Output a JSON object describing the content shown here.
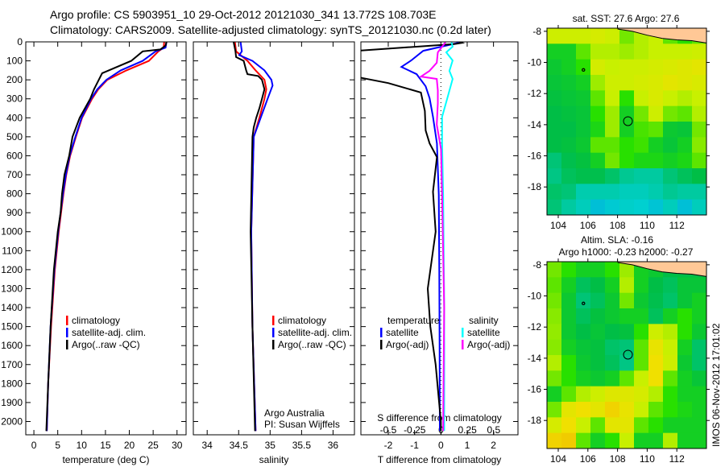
{
  "title": {
    "line1": "Argo profile: CS 5903951_10 29-Oct-2012 20121030_341 13.772S 108.703E",
    "line2": "Climatology: CARS2009. Satellite-adjusted climatology: synTS_20121030.nc (0.2d later)"
  },
  "stamp": "IMOS 06-Nov-2012 17:01:02",
  "colors": {
    "clim": "#ff0000",
    "sat": "#0000ff",
    "argo": "#000000",
    "sat_s": "#00ffff",
    "argo_s": "#ff00ff",
    "land": "#ffc896"
  },
  "chart_data": [
    {
      "type": "line",
      "id": "temperature",
      "xlabel": "temperature (deg C)",
      "ylabel": "depth",
      "xlim": [
        -1.7,
        31.9
      ],
      "ylim": [
        0,
        2070
      ],
      "xticks": [
        0,
        5,
        10,
        15,
        20,
        25,
        30
      ],
      "yticks": [
        0,
        100,
        200,
        300,
        400,
        500,
        600,
        700,
        800,
        900,
        1000,
        1100,
        1200,
        1300,
        1400,
        1500,
        1600,
        1700,
        1800,
        1900,
        2000
      ],
      "legend": [
        "climatology",
        "satellite-adj. clim.",
        "Argo(..raw -QC)"
      ],
      "series": [
        {
          "name": "climatology",
          "color": "#ff0000",
          "depth": [
            0,
            30,
            50,
            100,
            150,
            200,
            250,
            300,
            400,
            500,
            600,
            700,
            800,
            900,
            1000,
            1200,
            1500,
            1800,
            2050
          ],
          "values": [
            27.3,
            27.2,
            26.1,
            24.1,
            19.4,
            15.4,
            13.5,
            12.2,
            10.1,
            8.8,
            7.6,
            6.8,
            6.2,
            5.7,
            5.2,
            4.4,
            3.6,
            3.0,
            2.7
          ]
        },
        {
          "name": "satellite-adj. clim.",
          "color": "#0000ff",
          "depth": [
            0,
            30,
            50,
            100,
            150,
            200,
            250,
            300,
            400,
            500,
            600,
            700,
            800,
            900,
            1000,
            1200,
            1500,
            1800,
            2050
          ],
          "values": [
            27.8,
            27.6,
            25.5,
            22.8,
            18.2,
            15.2,
            13.3,
            12.0,
            10.0,
            8.7,
            7.5,
            6.7,
            6.1,
            5.6,
            5.1,
            4.3,
            3.5,
            3.0,
            2.7
          ]
        },
        {
          "name": "Argo(..raw -QC)",
          "color": "#000000",
          "depth": [
            0,
            20,
            40,
            50,
            100,
            165,
            250,
            300,
            400,
            500,
            600,
            700,
            800,
            900,
            1000,
            1200,
            1500,
            1800,
            2050
          ],
          "values": [
            27.8,
            27.6,
            26.5,
            22.8,
            20.4,
            14.3,
            12.6,
            11.8,
            9.6,
            8.1,
            7.4,
            6.4,
            5.9,
            5.6,
            5.0,
            4.2,
            3.5,
            3.0,
            2.6
          ]
        }
      ]
    },
    {
      "type": "line",
      "id": "salinity",
      "xlabel": "salinity",
      "xlim": [
        33.78,
        36.34
      ],
      "ylim": [
        0,
        2070
      ],
      "xticks": [
        "34",
        "34.5",
        "35",
        "35.5",
        "36"
      ],
      "legend": [
        "climatology",
        "satellite-adj. clim.",
        "Argo(..raw -QC)"
      ],
      "annotation": [
        "Argo Australia",
        "PI: Susan Wijffels"
      ],
      "series": [
        {
          "name": "climatology",
          "color": "#ff0000",
          "depth": [
            0,
            50,
            100,
            150,
            200,
            250,
            300,
            400,
            500,
            1000,
            1500,
            2050
          ],
          "values": [
            34.44,
            34.46,
            34.64,
            34.77,
            34.91,
            34.94,
            34.91,
            34.83,
            34.74,
            34.7,
            34.72,
            34.77
          ]
        },
        {
          "name": "satellite-adj. clim.",
          "color": "#0000ff",
          "depth": [
            0,
            50,
            70,
            100,
            150,
            200,
            230,
            300,
            400,
            500,
            1000,
            1500,
            2050
          ],
          "values": [
            34.53,
            34.55,
            34.51,
            34.72,
            34.91,
            35.02,
            35.04,
            34.96,
            34.85,
            34.74,
            34.7,
            34.72,
            34.77
          ]
        },
        {
          "name": "Argo(..raw -QC)",
          "color": "#000000",
          "depth": [
            0,
            50,
            80,
            100,
            150,
            170,
            180,
            200,
            250,
            300,
            350,
            400,
            450,
            500,
            1000,
            1500,
            2050
          ],
          "values": [
            34.42,
            34.45,
            34.46,
            34.58,
            34.62,
            34.64,
            34.81,
            34.87,
            34.91,
            34.87,
            34.83,
            34.78,
            34.74,
            34.72,
            34.69,
            34.72,
            34.76
          ]
        }
      ]
    },
    {
      "type": "line",
      "id": "difference",
      "xlabel": "T difference from climatology",
      "x2label": "S difference from climatology",
      "xlim": [
        -3.04,
        2.93
      ],
      "x2lim": [
        -0.76,
        0.73
      ],
      "ylim": [
        0,
        2070
      ],
      "xticks": [
        "-2",
        "-1",
        "0",
        "1",
        "2"
      ],
      "x2ticks": [
        "-0.5",
        "-0.25",
        "0",
        "0.25",
        "0.5"
      ],
      "legend_t": {
        "title": "temperature",
        "items": [
          "satellite",
          "Argo(-adj)"
        ]
      },
      "legend_s": {
        "title": "salinity",
        "items": [
          "satellite",
          "Argo(-adj)"
        ]
      },
      "series": [
        {
          "name": "T satellite",
          "axis": "T",
          "color": "#0000ff",
          "depth": [
            0,
            4,
            47,
            98,
            132,
            170,
            234,
            297,
            395,
            535,
            805,
            1200,
            1600,
            2050
          ],
          "values": [
            0.7,
            0.7,
            -0.67,
            -1.13,
            -1.5,
            -0.92,
            -0.58,
            -0.43,
            -0.3,
            -0.15,
            -0.08,
            -0.06,
            -0.05,
            -0.04
          ]
        },
        {
          "name": "T Argo(-adj)",
          "axis": "T",
          "color": "#000000",
          "depth": [
            0,
            5,
            12,
            47,
            185,
            190,
            217,
            267,
            364,
            467,
            535,
            607,
            790,
            1000,
            1300,
            1500,
            1700,
            2000,
            2050
          ],
          "values": [
            0.7,
            0.8,
            0.5,
            -3.2,
            -3.2,
            -3.0,
            -2.0,
            -0.76,
            -0.61,
            -0.58,
            -0.43,
            -0.15,
            -0.3,
            -0.2,
            -0.5,
            -0.4,
            -0.2,
            0,
            0
          ]
        },
        {
          "name": "S satellite",
          "axis": "S",
          "color": "#00ffff",
          "depth": [
            0,
            4,
            25,
            55,
            98,
            153,
            195,
            297,
            395,
            535,
            805,
            1400,
            2050
          ],
          "values": [
            0.1,
            0.1,
            0.11,
            0.05,
            0.11,
            0.08,
            0.11,
            0.06,
            0.01,
            0.01,
            0.02,
            0.03,
            0.03
          ]
        },
        {
          "name": "S Argo(-adj)",
          "axis": "S",
          "color": "#ff00ff",
          "depth": [
            0,
            4,
            55,
            110,
            153,
            183,
            195,
            255,
            323,
            436,
            565,
            805,
            1400,
            2050
          ],
          "values": [
            0.04,
            0.04,
            -0.03,
            -0.04,
            -0.11,
            -0.19,
            -0.04,
            -0.03,
            -0.03,
            -0.04,
            0,
            0.01,
            0.03,
            0.02
          ]
        }
      ]
    },
    {
      "type": "heatmap",
      "id": "sst-map",
      "title": "sat. SST: 27.6 Argo: 27.6",
      "xlim": [
        103.24,
        114.0
      ],
      "ylim": [
        -19.8,
        -7.8
      ],
      "xticks": [
        "104",
        "106",
        "108",
        "110",
        "112"
      ],
      "yticks": [
        "-8",
        "-10",
        "-12",
        "-14",
        "-16",
        "-18"
      ],
      "argo_position": [
        108.703,
        -13.772
      ],
      "grid": [
        [
          0.72,
          0.72,
          0.72,
          0.75,
          0.72,
          0.62,
          0.68,
          0.7,
          0.6,
          0.55,
          0.6
        ],
        [
          0.5,
          0.5,
          0.6,
          0.68,
          0.68,
          0.66,
          0.68,
          0.7,
          0.7,
          0.7,
          0.72
        ],
        [
          0.48,
          0.5,
          0.55,
          0.74,
          0.7,
          0.72,
          0.72,
          0.74,
          0.76,
          0.78,
          0.8
        ],
        [
          0.47,
          0.48,
          0.5,
          0.66,
          0.72,
          0.72,
          0.74,
          0.76,
          0.8,
          0.78,
          0.76
        ],
        [
          0.46,
          0.47,
          0.48,
          0.6,
          0.7,
          0.55,
          0.7,
          0.76,
          0.7,
          0.68,
          0.7
        ],
        [
          0.45,
          0.46,
          0.47,
          0.55,
          0.66,
          0.5,
          0.62,
          0.72,
          0.62,
          0.6,
          0.68
        ],
        [
          0.45,
          0.45,
          0.47,
          0.52,
          0.66,
          0.5,
          0.58,
          0.6,
          0.48,
          0.47,
          0.62
        ],
        [
          0.45,
          0.46,
          0.48,
          0.6,
          0.6,
          0.55,
          0.57,
          0.5,
          0.47,
          0.5,
          0.64
        ],
        [
          0.38,
          0.44,
          0.46,
          0.5,
          0.62,
          0.55,
          0.52,
          0.52,
          0.5,
          0.52,
          0.6
        ],
        [
          0.36,
          0.42,
          0.44,
          0.44,
          0.4,
          0.34,
          0.32,
          0.32,
          0.38,
          0.42,
          0.45
        ],
        [
          0.4,
          0.38,
          0.3,
          0.3,
          0.3,
          0.28,
          0.28,
          0.3,
          0.34,
          0.32,
          0.32
        ],
        [
          0.38,
          0.32,
          0.28,
          0.22,
          0.24,
          0.26,
          0.25,
          0.23,
          0.28,
          0.22,
          0.28
        ]
      ]
    },
    {
      "type": "heatmap",
      "id": "sla-map",
      "title": "Altim. SLA: -0.16",
      "subtitle": "Argo h1000: -0.23 h2000: -0.27",
      "xlim": [
        103.24,
        114.0
      ],
      "ylim": [
        -19.8,
        -7.8
      ],
      "xticks": [
        "104",
        "106",
        "108",
        "110",
        "112"
      ],
      "yticks": [
        "-8",
        "-10",
        "-12",
        "-14",
        "-16",
        "-18"
      ],
      "argo_position": [
        108.703,
        -13.772
      ],
      "grid": [
        [
          0.62,
          0.55,
          0.5,
          0.5,
          0.55,
          0.66,
          0.5,
          0.48,
          0.45,
          0.45,
          0.45
        ],
        [
          0.6,
          0.5,
          0.42,
          0.45,
          0.5,
          0.68,
          0.5,
          0.45,
          0.42,
          0.47,
          0.47
        ],
        [
          0.62,
          0.48,
          0.38,
          0.42,
          0.48,
          0.62,
          0.48,
          0.44,
          0.4,
          0.47,
          0.5
        ],
        [
          0.64,
          0.48,
          0.42,
          0.46,
          0.48,
          0.5,
          0.5,
          0.42,
          0.5,
          0.55,
          0.5
        ],
        [
          0.65,
          0.48,
          0.45,
          0.47,
          0.45,
          0.46,
          0.55,
          0.72,
          0.68,
          0.55,
          0.48
        ],
        [
          0.64,
          0.5,
          0.47,
          0.46,
          0.4,
          0.38,
          0.6,
          0.82,
          0.7,
          0.5,
          0.4
        ],
        [
          0.68,
          0.55,
          0.48,
          0.46,
          0.42,
          0.36,
          0.6,
          0.85,
          0.72,
          0.48,
          0.4
        ],
        [
          0.62,
          0.55,
          0.5,
          0.48,
          0.5,
          0.6,
          0.7,
          0.85,
          0.6,
          0.5,
          0.47
        ],
        [
          0.5,
          0.6,
          0.68,
          0.72,
          0.78,
          0.78,
          0.75,
          0.68,
          0.55,
          0.5,
          0.5
        ],
        [
          0.62,
          0.8,
          0.85,
          0.8,
          0.88,
          0.82,
          0.7,
          0.6,
          0.55,
          0.52,
          0.5
        ],
        [
          0.75,
          0.85,
          0.7,
          0.6,
          0.8,
          0.8,
          0.6,
          0.55,
          0.5,
          0.5,
          0.5
        ],
        [
          0.88,
          0.9,
          0.6,
          0.5,
          0.55,
          0.7,
          0.5,
          0.5,
          0.68,
          0.5,
          0.5
        ]
      ]
    }
  ]
}
